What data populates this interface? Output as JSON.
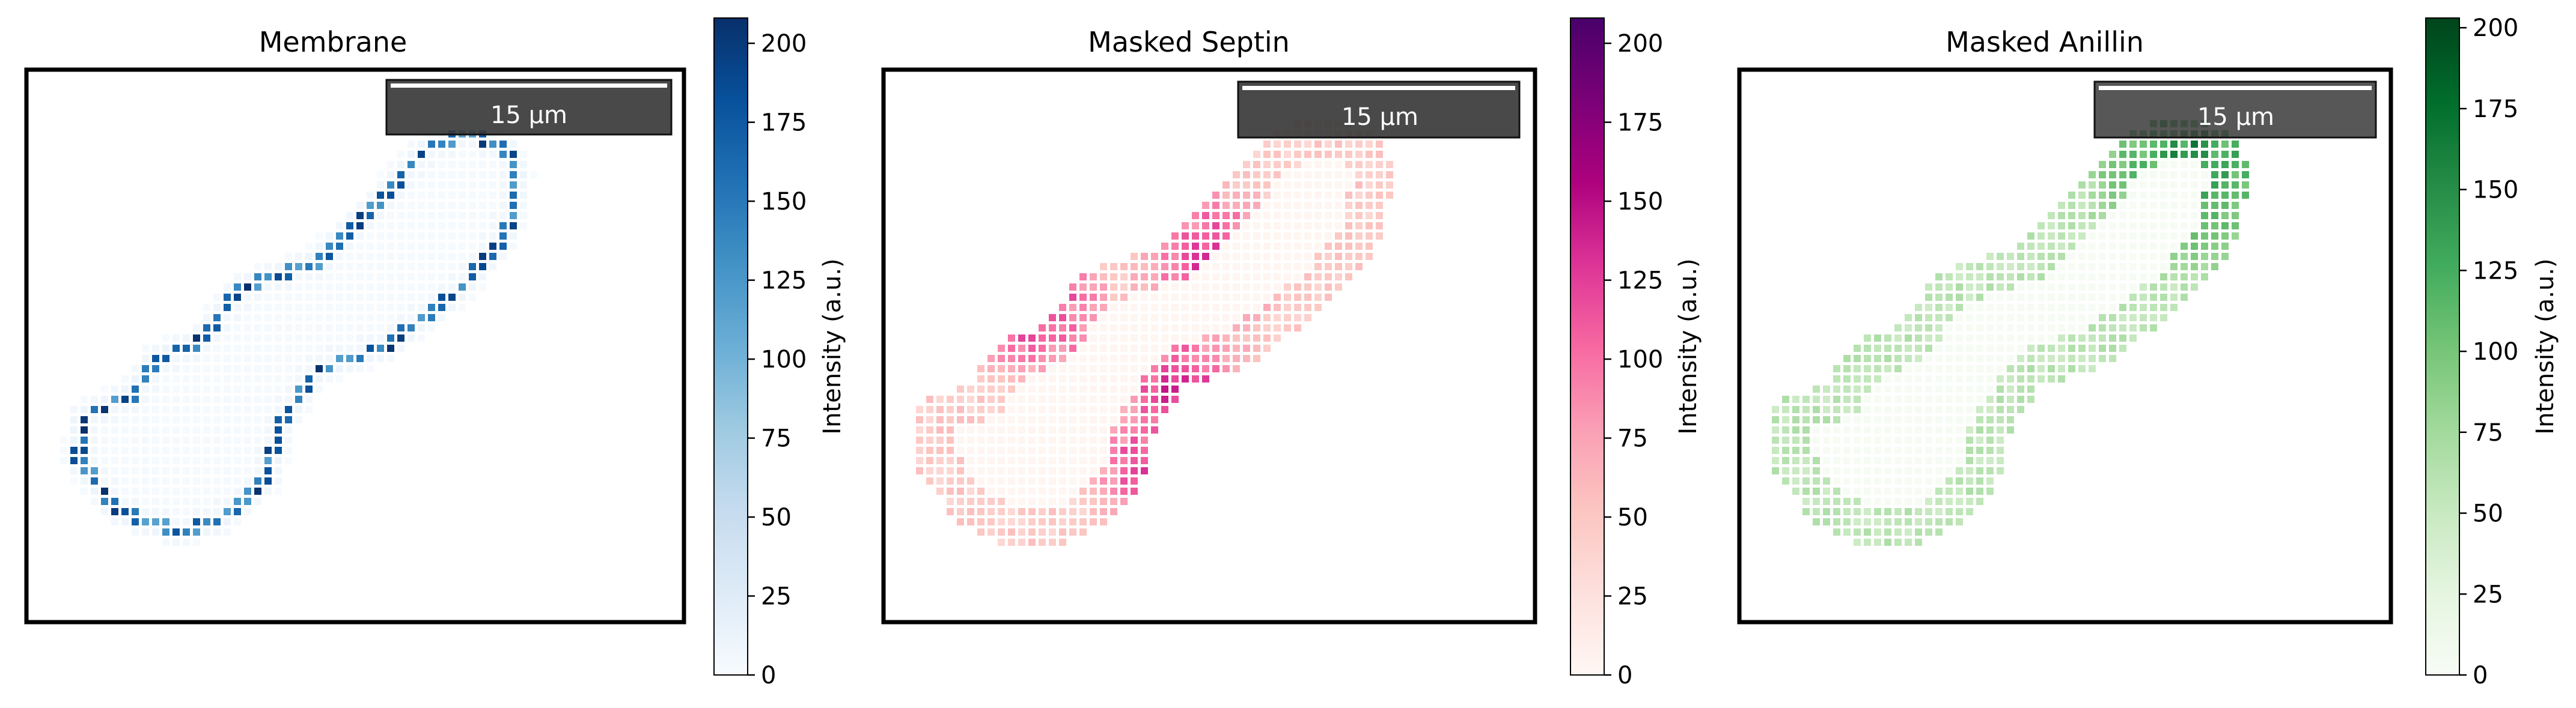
{
  "figure": {
    "panels": [
      {
        "title": "Membrane",
        "scalebar_label": "15 µm",
        "colormap": "blues",
        "colorbar_label": "Intensity (a.u.)",
        "colorbar_ticks": [
          "0",
          "25",
          "50",
          "75",
          "100",
          "125",
          "150",
          "175",
          "200"
        ]
      },
      {
        "title": "Masked Septin",
        "scalebar_label": "15 µm",
        "colormap": "rdpu",
        "colorbar_label": "Intensity (a.u.)",
        "colorbar_ticks": [
          "0",
          "25",
          "50",
          "75",
          "100",
          "125",
          "150",
          "175",
          "200"
        ]
      },
      {
        "title": "Masked Anillin",
        "scalebar_label": "15 µm",
        "colormap": "greens",
        "colorbar_label": "Intensity (a.u.)",
        "colorbar_ticks": [
          "0",
          "25",
          "50",
          "75",
          "100",
          "125",
          "150",
          "175",
          "200"
        ]
      }
    ]
  },
  "chart_data": [
    {
      "type": "heatmap",
      "title": "Membrane",
      "colorbar_label": "Intensity (a.u.)",
      "vmin": 0,
      "vmax": 208,
      "colorbar_ticks": [
        0,
        25,
        50,
        75,
        100,
        125,
        150,
        175,
        200
      ],
      "colormap": "Blues",
      "scale_bar": "15 µm",
      "description_values": {
        "ring_peak": 208,
        "interior": 3
      }
    },
    {
      "type": "heatmap",
      "title": "Masked Septin",
      "colorbar_label": "Intensity (a.u.)",
      "vmin": 0,
      "vmax": 208,
      "colorbar_ticks": [
        0,
        25,
        50,
        75,
        100,
        125,
        150,
        175,
        200
      ],
      "colormap": "RdPu",
      "scale_bar": "15 µm",
      "description_values": {
        "neck_peak": 180,
        "ring_base": 40
      }
    },
    {
      "type": "heatmap",
      "title": "Masked Anillin",
      "colorbar_label": "Intensity (a.u.)",
      "vmin": 0,
      "vmax": 203,
      "colorbar_ticks": [
        0,
        25,
        50,
        75,
        100,
        125,
        150,
        175,
        200
      ],
      "colormap": "Greens",
      "scale_bar": "15 µm",
      "description_values": {
        "tip_peak": 200,
        "ring_base": 60
      }
    }
  ],
  "colors": {
    "blues": [
      "#f7fbff",
      "#deebf7",
      "#c6dbef",
      "#9ecae1",
      "#6baed6",
      "#4292c6",
      "#2171b5",
      "#08519c",
      "#08306b"
    ],
    "rdpu": [
      "#fff7f3",
      "#fde0dd",
      "#fcc5c0",
      "#fa9fb5",
      "#f768a1",
      "#dd3497",
      "#ae017e",
      "#7a0177",
      "#49006a"
    ],
    "greens": [
      "#f7fcf5",
      "#e5f5e0",
      "#c7e9c0",
      "#a1d99b",
      "#74c476",
      "#41ab5d",
      "#238b45",
      "#006d2c",
      "#00441b"
    ]
  }
}
